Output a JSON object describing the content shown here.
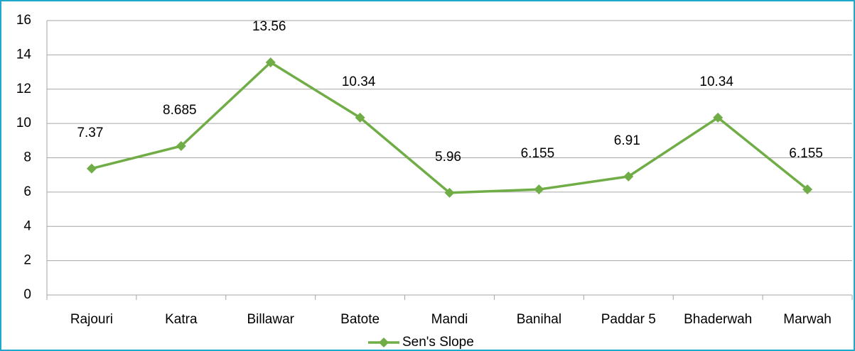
{
  "chart_data": {
    "type": "line",
    "categories": [
      "Rajouri",
      "Katra",
      "Billawar",
      "Batote",
      "Mandi",
      "Banihal",
      "Paddar 5",
      "Bhaderwah",
      "Marwah"
    ],
    "series": [
      {
        "name": "Sen's Slope",
        "color": "#70ad47",
        "values": [
          7.37,
          8.685,
          13.56,
          10.34,
          5.96,
          6.155,
          6.91,
          10.34,
          6.155
        ]
      }
    ],
    "ylim": [
      0,
      16
    ],
    "yticks": [
      0,
      2,
      4,
      6,
      8,
      10,
      12,
      14,
      16
    ],
    "grid": true,
    "legend": "bottom"
  }
}
